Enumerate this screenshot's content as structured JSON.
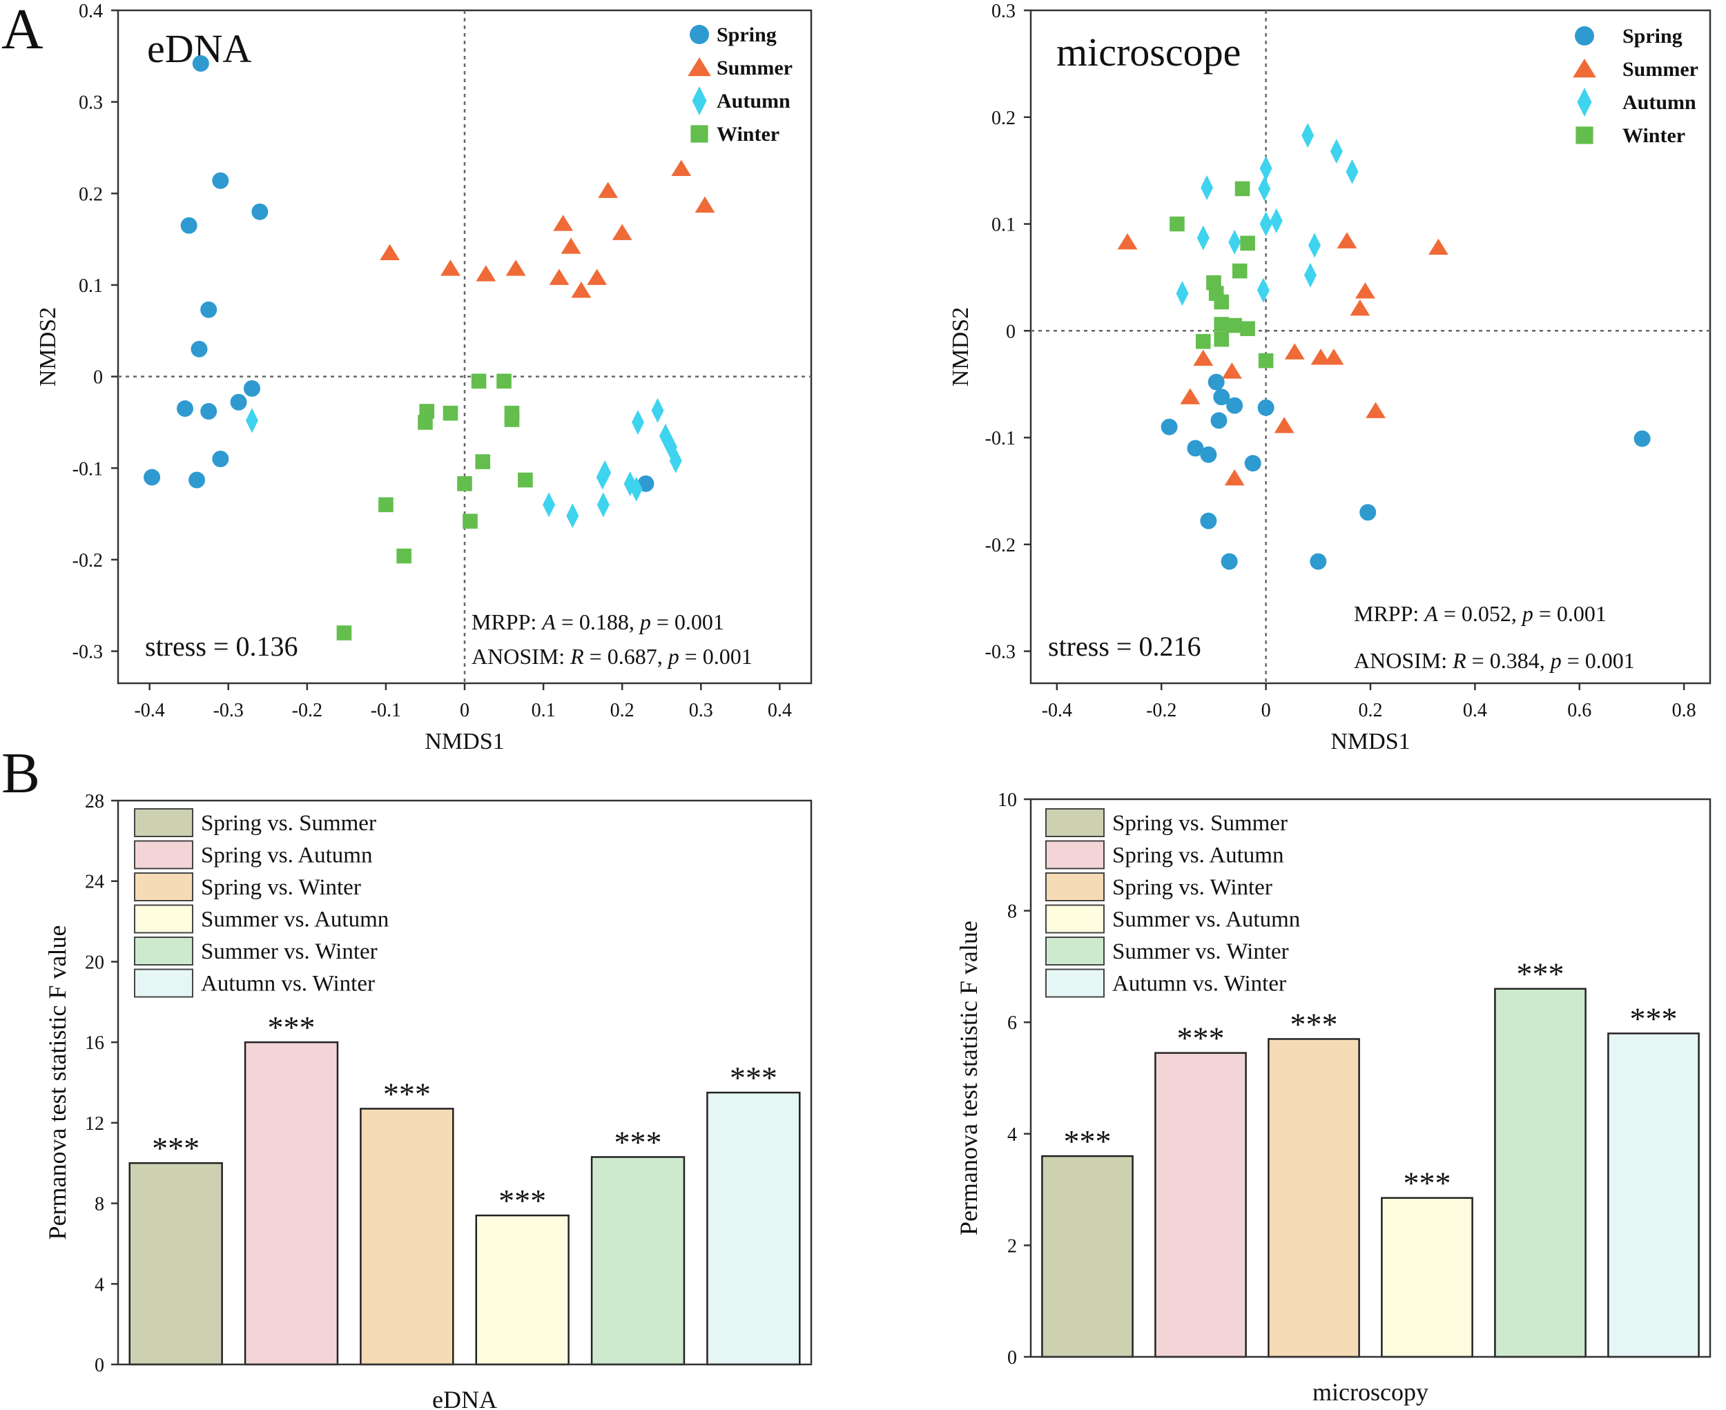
{
  "figure": {
    "panel_a_label": "A",
    "panel_b_label": "B"
  },
  "colors": {
    "spring": "#2e9ad0",
    "summer": "#ef6a37",
    "autumn": "#3ed3ee",
    "winter": "#63be4d",
    "bar_spring_summer": "#cdd1b2",
    "bar_spring_autumn": "#f3d5d8",
    "bar_spring_winter": "#f6dbb7",
    "bar_summer_autumn": "#fefde0",
    "bar_summer_winter": "#cdeace",
    "bar_autumn_winter": "#e5f6f5"
  },
  "chart_data": [
    {
      "id": "nmds-edna",
      "type": "scatter",
      "title": "eDNA",
      "xlabel": "NMDS1",
      "ylabel": "NMDS2",
      "xlim": [
        -0.44,
        0.44
      ],
      "ylim": [
        -0.335,
        0.4
      ],
      "xticks": [
        -0.4,
        -0.3,
        -0.2,
        -0.1,
        0,
        0.1,
        0.2,
        0.3,
        0.4
      ],
      "xtick_labels": [
        "-0.4",
        "-0.3",
        "-0.2",
        "-0.1",
        "0",
        "0.1",
        "0.2",
        "0.3",
        "0.4"
      ],
      "yticks": [
        -0.3,
        -0.2,
        -0.1,
        0,
        0.1,
        0.2,
        0.3,
        0.4
      ],
      "ytick_labels": [
        "-0.3",
        "-0.2",
        "-0.1",
        "0",
        "0.1",
        "0.2",
        "0.3",
        "0.4"
      ],
      "stress_text": "stress = 0.136",
      "stats_line1": "MRPP: A = 0.188, p = 0.001",
      "stats_line2": "ANOSIM: R = 0.687, p = 0.001",
      "legend": [
        "Spring",
        "Summer",
        "Autumn",
        "Winter"
      ],
      "series": [
        {
          "name": "Spring",
          "marker": "circle",
          "points": [
            [
              -0.335,
              0.342
            ],
            [
              -0.31,
              0.214
            ],
            [
              -0.35,
              0.165
            ],
            [
              -0.26,
              0.18
            ],
            [
              -0.325,
              0.073
            ],
            [
              -0.337,
              0.03
            ],
            [
              -0.27,
              -0.013
            ],
            [
              -0.355,
              -0.035
            ],
            [
              -0.325,
              -0.038
            ],
            [
              -0.287,
              -0.028
            ],
            [
              -0.31,
              -0.09
            ],
            [
              -0.397,
              -0.11
            ],
            [
              -0.34,
              -0.113
            ],
            [
              0.23,
              -0.117
            ]
          ]
        },
        {
          "name": "Summer",
          "marker": "triangle",
          "points": [
            [
              0.275,
              0.227
            ],
            [
              0.305,
              0.187
            ],
            [
              0.182,
              0.203
            ],
            [
              0.125,
              0.167
            ],
            [
              0.2,
              0.157
            ],
            [
              0.135,
              0.142
            ],
            [
              0.12,
              0.108
            ],
            [
              0.168,
              0.108
            ],
            [
              0.148,
              0.094
            ],
            [
              0.065,
              0.118
            ],
            [
              0.027,
              0.112
            ],
            [
              -0.018,
              0.118
            ],
            [
              -0.095,
              0.135
            ]
          ]
        },
        {
          "name": "Autumn",
          "marker": "diamond",
          "points": [
            [
              -0.27,
              -0.048
            ],
            [
              0.22,
              -0.05
            ],
            [
              0.245,
              -0.037
            ],
            [
              0.255,
              -0.065
            ],
            [
              0.262,
              -0.077
            ],
            [
              0.268,
              -0.092
            ],
            [
              0.178,
              -0.105
            ],
            [
              0.175,
              -0.11
            ],
            [
              0.21,
              -0.117
            ],
            [
              0.218,
              -0.123
            ],
            [
              0.107,
              -0.14
            ],
            [
              0.137,
              -0.152
            ],
            [
              0.176,
              -0.14
            ]
          ]
        },
        {
          "name": "Winter",
          "marker": "square",
          "points": [
            [
              0.018,
              -0.005
            ],
            [
              0.05,
              -0.005
            ],
            [
              -0.048,
              -0.038
            ],
            [
              -0.05,
              -0.05
            ],
            [
              -0.018,
              -0.04
            ],
            [
              0.06,
              -0.04
            ],
            [
              0.06,
              -0.047
            ],
            [
              0.023,
              -0.093
            ],
            [
              0.077,
              -0.113
            ],
            [
              0.0,
              -0.117
            ],
            [
              -0.1,
              -0.14
            ],
            [
              0.007,
              -0.158
            ],
            [
              -0.077,
              -0.196
            ],
            [
              -0.153,
              -0.28
            ]
          ]
        }
      ]
    },
    {
      "id": "nmds-microscope",
      "type": "scatter",
      "title": "microscope",
      "xlabel": "NMDS1",
      "ylabel": "NMDS2",
      "xlim": [
        -0.45,
        0.85
      ],
      "ylim": [
        -0.33,
        0.3
      ],
      "xticks": [
        -0.4,
        -0.2,
        0,
        0.2,
        0.4,
        0.6,
        0.8
      ],
      "xtick_labels": [
        "-0.4",
        "-0.2",
        "0",
        "0.2",
        "0.4",
        "0.6",
        "0.8"
      ],
      "yticks": [
        -0.3,
        -0.2,
        -0.1,
        0,
        0.1,
        0.2,
        0.3
      ],
      "ytick_labels": [
        "-0.3",
        "-0.2",
        "-0.1",
        "0",
        "0.1",
        "0.2",
        "0.3"
      ],
      "stress_text": "stress = 0.216",
      "stats_line1": "MRPP: A = 0.052, p = 0.001",
      "stats_line2": "ANOSIM: R = 0.384, p = 0.001",
      "legend": [
        "Spring",
        "Summer",
        "Autumn",
        "Winter"
      ],
      "series": [
        {
          "name": "Spring",
          "marker": "circle",
          "points": [
            [
              -0.095,
              -0.048
            ],
            [
              -0.085,
              -0.062
            ],
            [
              -0.06,
              -0.07
            ],
            [
              0.0,
              -0.072
            ],
            [
              -0.09,
              -0.084
            ],
            [
              -0.185,
              -0.09
            ],
            [
              -0.135,
              -0.11
            ],
            [
              -0.11,
              -0.116
            ],
            [
              -0.025,
              -0.124
            ],
            [
              -0.11,
              -0.178
            ],
            [
              -0.07,
              -0.216
            ],
            [
              0.1,
              -0.216
            ],
            [
              0.195,
              -0.17
            ],
            [
              0.72,
              -0.101
            ]
          ]
        },
        {
          "name": "Summer",
          "marker": "triangle",
          "points": [
            [
              -0.265,
              0.083
            ],
            [
              0.155,
              0.084
            ],
            [
              0.33,
              0.078
            ],
            [
              0.19,
              0.037
            ],
            [
              0.18,
              0.021
            ],
            [
              -0.12,
              -0.026
            ],
            [
              0.055,
              -0.02
            ],
            [
              0.105,
              -0.025
            ],
            [
              0.13,
              -0.025
            ],
            [
              -0.065,
              -0.038
            ],
            [
              -0.145,
              -0.062
            ],
            [
              0.21,
              -0.075
            ],
            [
              0.035,
              -0.089
            ],
            [
              -0.06,
              -0.138
            ]
          ]
        },
        {
          "name": "Autumn",
          "marker": "diamond",
          "points": [
            [
              -0.113,
              0.134
            ],
            [
              0.0,
              0.152
            ],
            [
              -0.003,
              0.133
            ],
            [
              0.08,
              0.183
            ],
            [
              0.135,
              0.168
            ],
            [
              0.165,
              0.149
            ],
            [
              0.0,
              0.1
            ],
            [
              0.02,
              0.103
            ],
            [
              -0.12,
              0.087
            ],
            [
              -0.06,
              0.083
            ],
            [
              0.093,
              0.08
            ],
            [
              0.085,
              0.052
            ],
            [
              -0.005,
              0.038
            ],
            [
              -0.16,
              0.035
            ]
          ]
        },
        {
          "name": "Winter",
          "marker": "square",
          "points": [
            [
              -0.17,
              0.1
            ],
            [
              -0.045,
              0.133
            ],
            [
              -0.035,
              0.082
            ],
            [
              -0.05,
              0.056
            ],
            [
              -0.1,
              0.045
            ],
            [
              -0.095,
              0.035
            ],
            [
              -0.085,
              0.027
            ],
            [
              -0.085,
              0.006
            ],
            [
              -0.06,
              0.005
            ],
            [
              -0.035,
              0.002
            ],
            [
              -0.12,
              -0.01
            ],
            [
              -0.085,
              -0.008
            ],
            [
              0.0,
              -0.028
            ]
          ]
        }
      ]
    },
    {
      "id": "permanova-edna",
      "type": "bar",
      "title": "",
      "xlabel": "eDNA",
      "ylabel": "Permanova test statistic F value",
      "ylim": [
        0,
        28
      ],
      "yticks": [
        0,
        4,
        8,
        12,
        16,
        20,
        24,
        28
      ],
      "ytick_labels": [
        "0",
        "4",
        "8",
        "12",
        "16",
        "20",
        "24",
        "28"
      ],
      "categories": [
        "Spring vs. Summer",
        "Spring vs. Autumn",
        "Spring vs. Winter",
        "Summer vs. Autumn",
        "Summer vs. Winter",
        "Autumn vs. Winter"
      ],
      "values": [
        10.0,
        16.0,
        12.7,
        7.4,
        10.3,
        13.5
      ],
      "significance": [
        "***",
        "***",
        "***",
        "***",
        "***",
        "***"
      ]
    },
    {
      "id": "permanova-microscopy",
      "type": "bar",
      "title": "",
      "xlabel": "microscopy",
      "ylabel": "Permanova test statistic F value",
      "ylim": [
        0,
        10
      ],
      "yticks": [
        0,
        2,
        4,
        6,
        8,
        10
      ],
      "ytick_labels": [
        "0",
        "2",
        "4",
        "6",
        "8",
        "10"
      ],
      "categories": [
        "Spring vs. Summer",
        "Spring vs. Autumn",
        "Spring vs. Winter",
        "Summer vs. Autumn",
        "Summer vs. Winter",
        "Autumn vs. Winter"
      ],
      "values": [
        3.6,
        5.45,
        5.7,
        2.85,
        6.6,
        5.8
      ],
      "significance": [
        "***",
        "***",
        "***",
        "***",
        "***",
        "***"
      ]
    }
  ]
}
